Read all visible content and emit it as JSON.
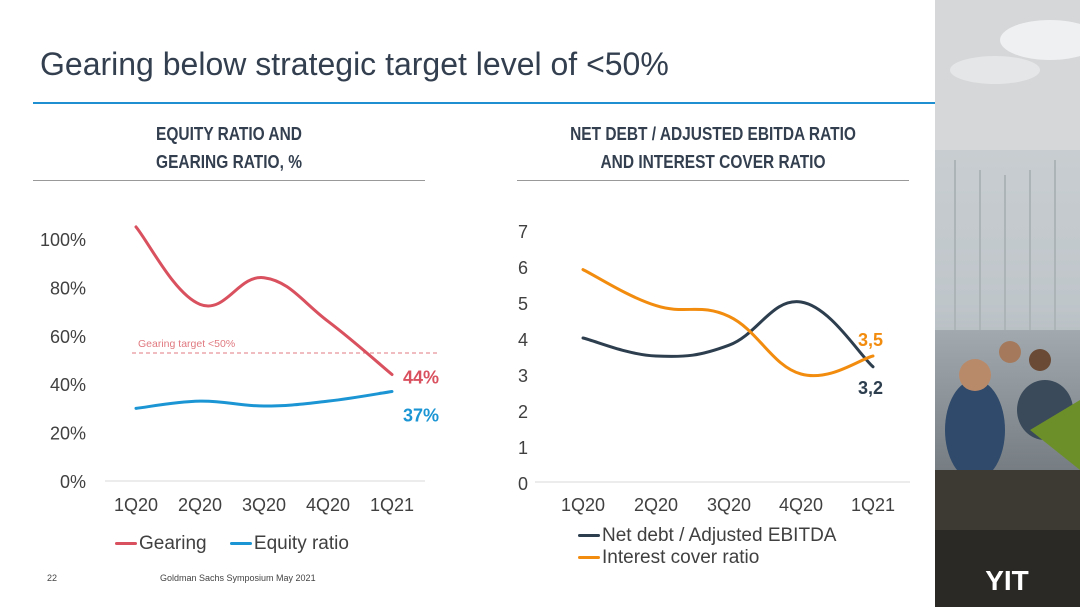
{
  "slide": {
    "title": "Gearing below strategic target level of <50%",
    "page_number": "22",
    "footer": "Goldman Sachs Symposium May 2021",
    "logo_text": "YIT",
    "accent_color": "#1f8fd1"
  },
  "left_chart": {
    "subtitle_line1": "EQUITY RATIO AND",
    "subtitle_line2": "GEARING RATIO, %",
    "target_label": "Gearing target <50%",
    "end_label_gearing": "44%",
    "end_label_equity": "37%"
  },
  "right_chart": {
    "subtitle_line1": "NET DEBT / ADJUSTED EBITDA RATIO",
    "subtitle_line2": "AND INTEREST COVER RATIO",
    "end_label_interest": "3,5",
    "end_label_netdebt": "3,2"
  },
  "chart_data": [
    {
      "type": "line",
      "categories": [
        "1Q20",
        "2Q20",
        "3Q20",
        "4Q20",
        "1Q21"
      ],
      "y_tick_labels": [
        "0%",
        "20%",
        "40%",
        "60%",
        "80%",
        "100%"
      ],
      "ylim": [
        0,
        110
      ],
      "grid": false,
      "legend_position": "bottom",
      "reference_line": {
        "value": 50,
        "label": "Gearing target <50%",
        "color": "#e07a80"
      },
      "series": [
        {
          "name": "Gearing",
          "color": "#d9505e",
          "values": [
            105,
            73,
            84,
            66,
            44
          ]
        },
        {
          "name": "Equity ratio",
          "color": "#1b95d3",
          "values": [
            30,
            33,
            31,
            33,
            37
          ]
        }
      ]
    },
    {
      "type": "line",
      "categories": [
        "1Q20",
        "2Q20",
        "3Q20",
        "4Q20",
        "1Q21"
      ],
      "y_tick_labels": [
        "0",
        "1",
        "2",
        "3",
        "4",
        "5",
        "6",
        "7"
      ],
      "ylim": [
        0,
        7
      ],
      "grid": false,
      "legend_position": "bottom",
      "series": [
        {
          "name": "Net debt / Adjusted EBITDA",
          "color": "#2d3e4f",
          "values": [
            4.0,
            3.5,
            3.8,
            5.0,
            3.2
          ]
        },
        {
          "name": "Interest cover ratio",
          "color": "#f28c0f",
          "values": [
            5.9,
            4.9,
            4.6,
            3.0,
            3.5
          ]
        }
      ]
    }
  ]
}
